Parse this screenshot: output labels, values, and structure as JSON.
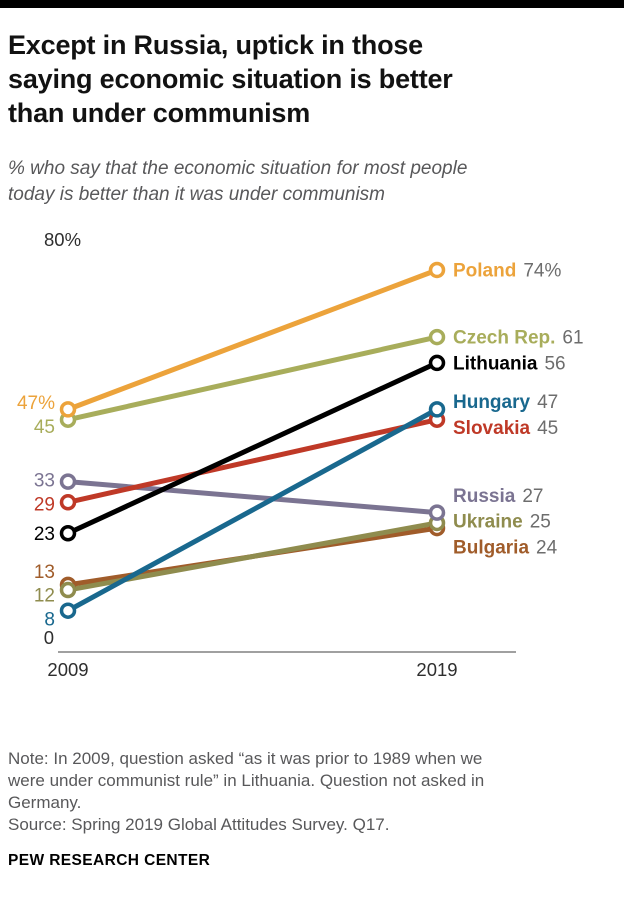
{
  "header": {
    "title_lines": [
      "Except in Russia, uptick in those",
      "saying economic situation is better",
      "than under communism"
    ],
    "subtitle_lines": [
      "% who say that the economic situation for most people",
      "today is better than it was under communism"
    ]
  },
  "chart_data": {
    "type": "line",
    "subtype": "slope",
    "x_labels": [
      "2009",
      "2019"
    ],
    "ylim": [
      0,
      80
    ],
    "y_axis_top_label": "80%",
    "y_axis_bottom_label": "0",
    "series": [
      {
        "name": "Poland",
        "values": [
          47,
          74
        ],
        "color": "#eca33b",
        "left_label": "47%",
        "right_label": "74%"
      },
      {
        "name": "Czech Rep.",
        "values": [
          45,
          61
        ],
        "color": "#a8ad5b",
        "left_label": "45",
        "right_label": "61"
      },
      {
        "name": "Lithuania",
        "values": [
          23,
          56
        ],
        "color": "#000000",
        "left_label": "23",
        "right_label": "56"
      },
      {
        "name": "Hungary",
        "values": [
          8,
          47
        ],
        "color": "#19688e",
        "left_label": "8",
        "right_label": "47"
      },
      {
        "name": "Slovakia",
        "values": [
          29,
          45
        ],
        "color": "#bf3927",
        "left_label": "29",
        "right_label": "45"
      },
      {
        "name": "Russia",
        "values": [
          33,
          27
        ],
        "color": "#7b7492",
        "left_label": "33",
        "right_label": "27"
      },
      {
        "name": "Ukraine",
        "values": [
          12,
          25
        ],
        "color": "#8f8c4e",
        "left_label": "12",
        "right_label": "25"
      },
      {
        "name": "Bulgaria",
        "values": [
          13,
          24
        ],
        "color": "#a05c2a",
        "left_label": "13",
        "right_label": "24"
      }
    ],
    "right_value_color": "#6d6d6d"
  },
  "footer": {
    "note_lines": [
      "Note: In 2009, question asked “as it was prior to 1989 when we",
      "were under communist rule” in Lithuania. Question not asked in",
      "Germany.",
      "Source: Spring 2019 Global Attitudes Survey. Q17."
    ],
    "brand": "PEW RESEARCH CENTER"
  }
}
